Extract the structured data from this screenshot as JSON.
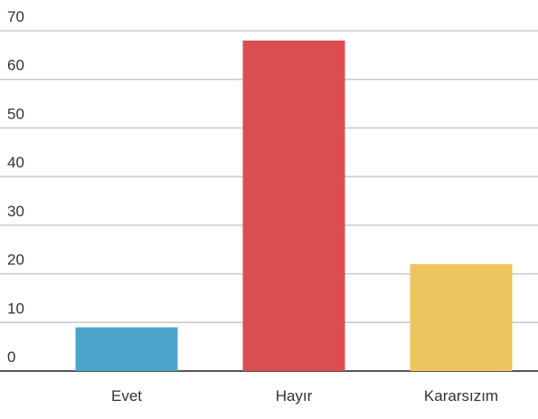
{
  "chart_data": {
    "type": "bar",
    "categories": [
      "Evet",
      "Hayır",
      "Kararsızım"
    ],
    "values": [
      9,
      68,
      22
    ],
    "colors": [
      "#4ea5cc",
      "#dc4d51",
      "#edc55e"
    ],
    "ylim": [
      0,
      70
    ],
    "yticks": [
      0,
      10,
      20,
      30,
      40,
      50,
      60,
      70
    ],
    "grid": true
  }
}
